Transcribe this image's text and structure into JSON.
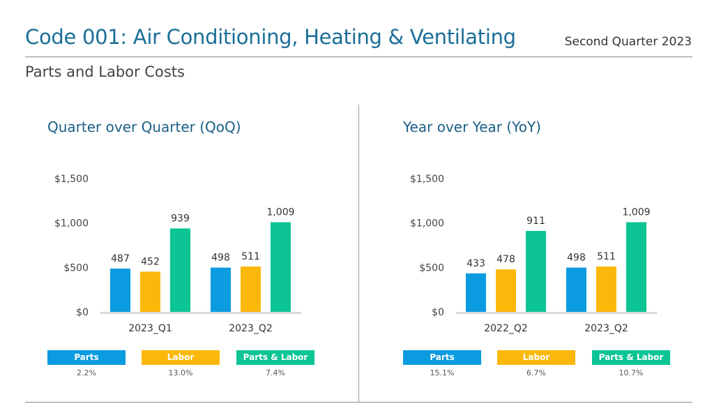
{
  "header": {
    "title": "Code 001: Air Conditioning, Heating & Ventilating",
    "quarter": "Second Quarter 2023",
    "subtitle": "Parts and Labor Costs"
  },
  "colors": {
    "parts": "#0b9be0",
    "labor": "#fbb80a",
    "parts_labor": "#0cc494",
    "baseline": "#d9d9d9"
  },
  "chart_data": [
    {
      "type": "bar",
      "title": "Quarter over Quarter (QoQ)",
      "categories": [
        "2023_Q1",
        "2023_Q2"
      ],
      "y_ticks": [
        "$0",
        "$500",
        "$1,000",
        "$1,500"
      ],
      "ylim": [
        0,
        1500
      ],
      "series": [
        {
          "name": "Parts",
          "values": [
            487,
            498
          ],
          "labels": [
            "487",
            "498"
          ],
          "change": "2.2%"
        },
        {
          "name": "Labor",
          "values": [
            452,
            511
          ],
          "labels": [
            "452",
            "511"
          ],
          "change": "13.0%"
        },
        {
          "name": "Parts & Labor",
          "values": [
            939,
            1009
          ],
          "labels": [
            "939",
            "1,009"
          ],
          "change": "7.4%"
        }
      ]
    },
    {
      "type": "bar",
      "title": "Year over Year (YoY)",
      "categories": [
        "2022_Q2",
        "2023_Q2"
      ],
      "y_ticks": [
        "$0",
        "$500",
        "$1,000",
        "$1,500"
      ],
      "ylim": [
        0,
        1500
      ],
      "series": [
        {
          "name": "Parts",
          "values": [
            433,
            498
          ],
          "labels": [
            "433",
            "498"
          ],
          "change": "15.1%"
        },
        {
          "name": "Labor",
          "values": [
            478,
            511
          ],
          "labels": [
            "478",
            "511"
          ],
          "change": "6.7%"
        },
        {
          "name": "Parts & Labor",
          "values": [
            911,
            1009
          ],
          "labels": [
            "911",
            "1,009"
          ],
          "change": "10.7%"
        }
      ]
    }
  ]
}
